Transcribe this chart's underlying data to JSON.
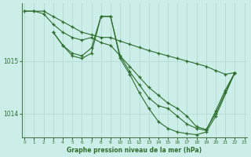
{
  "xlabel": "Graphe pression niveau de la mer (hPa)",
  "bg_color": "#cceee8",
  "grid_color": "#b8ddd8",
  "line_color": "#2d6e2d",
  "x_ticks": [
    0,
    1,
    2,
    3,
    4,
    5,
    6,
    7,
    8,
    9,
    10,
    11,
    12,
    13,
    14,
    15,
    16,
    17,
    18,
    19,
    20,
    21,
    22,
    23
  ],
  "y_ticks": [
    1014,
    1015
  ],
  "ylim": [
    1013.55,
    1016.1
  ],
  "xlim": [
    -0.3,
    23.3
  ],
  "series": [
    {
      "x": [
        0,
        1,
        2,
        3,
        4,
        5,
        6,
        7,
        8,
        9,
        10,
        11,
        12,
        13,
        14,
        15,
        16,
        17,
        18,
        19,
        20,
        21,
        22
      ],
      "y": [
        1015.95,
        1015.95,
        1015.95,
        1015.85,
        1015.75,
        1015.65,
        1015.55,
        1015.5,
        1015.45,
        1015.45,
        1015.38,
        1015.32,
        1015.26,
        1015.2,
        1015.15,
        1015.1,
        1015.05,
        1015.0,
        1014.95,
        1014.9,
        1014.82,
        1014.75,
        1014.78
      ]
    },
    {
      "x": [
        0,
        1,
        2,
        3,
        4,
        5,
        6,
        7,
        8,
        9,
        10,
        11,
        12,
        13,
        14,
        15,
        16,
        17,
        18,
        19,
        20,
        21,
        22
      ],
      "y": [
        1015.95,
        1015.95,
        1015.9,
        1015.7,
        1015.55,
        1015.45,
        1015.4,
        1015.45,
        1015.35,
        1015.3,
        1015.1,
        1014.9,
        1014.7,
        1014.5,
        1014.35,
        1014.2,
        1014.1,
        1013.95,
        1013.75,
        1013.7,
        1014.0,
        1014.4,
        1014.78
      ]
    },
    {
      "x": [
        3,
        4,
        5,
        6,
        7,
        8,
        9,
        10,
        11,
        12,
        13,
        14,
        15,
        16,
        17,
        18,
        19,
        20,
        21,
        22
      ],
      "y": [
        1015.55,
        1015.3,
        1015.15,
        1015.1,
        1015.25,
        1015.85,
        1015.85,
        1015.1,
        1014.8,
        1014.55,
        1014.3,
        1014.15,
        1014.1,
        1013.95,
        1013.8,
        1013.72,
        1013.68,
        1014.05,
        1014.45,
        1014.78
      ]
    },
    {
      "x": [
        3,
        4,
        5,
        6,
        7,
        8,
        9,
        10,
        11,
        12,
        13,
        14,
        15,
        16,
        17,
        18,
        19,
        20,
        22
      ],
      "y": [
        1015.55,
        1015.3,
        1015.1,
        1015.05,
        1015.15,
        1015.85,
        1015.85,
        1015.05,
        1014.75,
        1014.4,
        1014.1,
        1013.85,
        1013.72,
        1013.65,
        1013.62,
        1013.6,
        1013.65,
        1013.95,
        1014.78
      ]
    }
  ]
}
